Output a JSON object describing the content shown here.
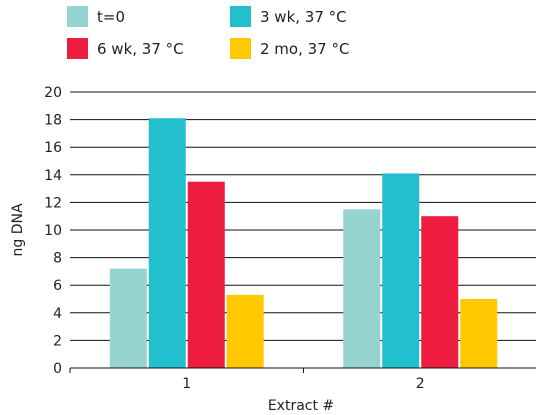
{
  "chart_data": {
    "type": "bar",
    "categories": [
      "1",
      "2"
    ],
    "series": [
      {
        "name": "t=0",
        "values": [
          7.2,
          11.5
        ],
        "color": "#96d4d2"
      },
      {
        "name": "3 wk, 37 °C",
        "values": [
          18.1,
          14.1
        ],
        "color": "#22bfcf"
      },
      {
        "name": "6 wk, 37 °C",
        "values": [
          13.5,
          11.0
        ],
        "color": "#ee1c3e"
      },
      {
        "name": "2 mo, 37 °C",
        "values": [
          5.3,
          5.0
        ],
        "color": "#ffc800"
      }
    ],
    "xlabel": "Extract #",
    "ylabel": "ng DNA",
    "ylim": [
      0,
      20
    ],
    "yticks": [
      0,
      2,
      4,
      6,
      8,
      10,
      12,
      14,
      16,
      18,
      20
    ],
    "grid": true,
    "legend_position": "top"
  }
}
